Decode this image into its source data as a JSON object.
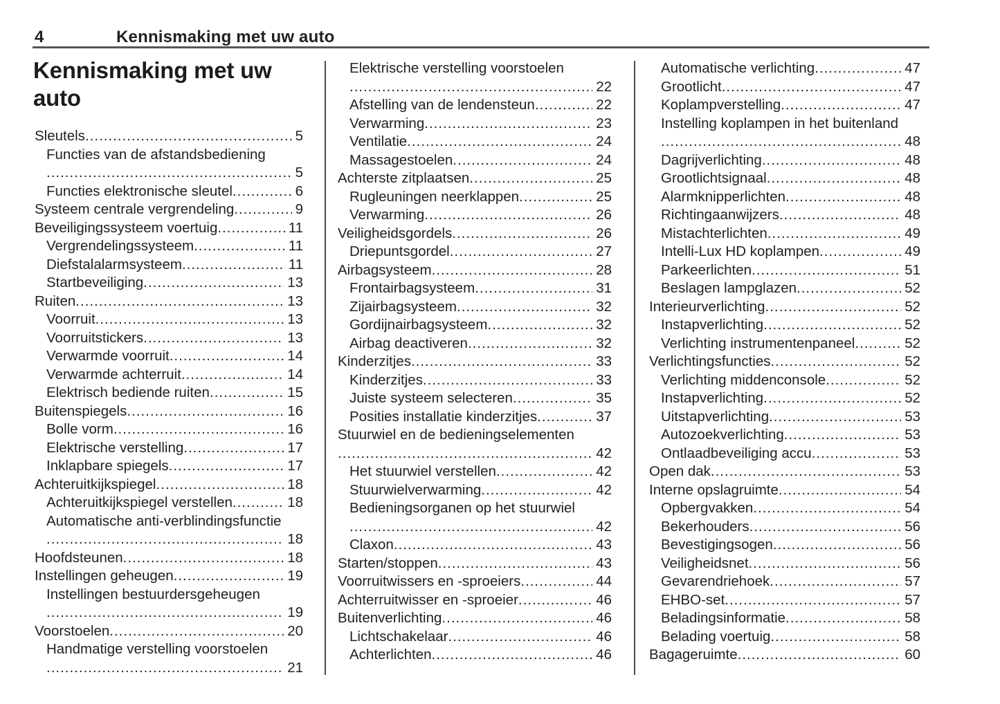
{
  "page_header": {
    "page_number": "4",
    "chapter_title": "Kennismaking met uw auto"
  },
  "section_title": "Kennismaking met uw auto",
  "colors": {
    "background": "#ffffff",
    "text": "#212121",
    "header_rule": "#565656",
    "column_divider": "#4a4a4a"
  },
  "toc": {
    "columns": [
      {
        "rows": [
          {
            "kind": "entry",
            "label": "Sleutels",
            "page": "5",
            "indent": 0
          },
          {
            "kind": "label",
            "label": "Functies van de afstandsbediening",
            "indent": 1
          },
          {
            "kind": "dots",
            "page": "5",
            "indent": 1
          },
          {
            "kind": "entry",
            "label": "Functies elektronische sleutel",
            "page": "6",
            "indent": 1
          },
          {
            "kind": "entry",
            "label": "Systeem centrale vergrendeling",
            "page": "9",
            "indent": 0
          },
          {
            "kind": "entry",
            "label": "Beveiligingssysteem voertuig",
            "page": "11",
            "indent": 0
          },
          {
            "kind": "entry",
            "label": "Vergrendelingssysteem",
            "page": "11",
            "indent": 1
          },
          {
            "kind": "entry",
            "label": "Diefstalalarmsysteem",
            "page": "11",
            "indent": 1
          },
          {
            "kind": "entry",
            "label": "Startbeveiliging",
            "page": "13",
            "indent": 1
          },
          {
            "kind": "entry",
            "label": "Ruiten",
            "page": "13",
            "indent": 0
          },
          {
            "kind": "entry",
            "label": "Voorruit",
            "page": "13",
            "indent": 1
          },
          {
            "kind": "entry",
            "label": "Voorruitstickers",
            "page": "13",
            "indent": 1
          },
          {
            "kind": "entry",
            "label": "Verwarmde voorruit",
            "page": "14",
            "indent": 1
          },
          {
            "kind": "entry",
            "label": "Verwarmde achterruit",
            "page": "14",
            "indent": 1
          },
          {
            "kind": "entry",
            "label": "Elektrisch bediende ruiten",
            "page": "15",
            "indent": 1
          },
          {
            "kind": "entry",
            "label": "Buitenspiegels",
            "page": "16",
            "indent": 0
          },
          {
            "kind": "entry",
            "label": "Bolle vorm",
            "page": "16",
            "indent": 1
          },
          {
            "kind": "entry",
            "label": "Elektrische verstelling",
            "page": "17",
            "indent": 1
          },
          {
            "kind": "entry",
            "label": "Inklapbare spiegels",
            "page": "17",
            "indent": 1
          },
          {
            "kind": "entry",
            "label": "Achteruitkijkspiegel",
            "page": "18",
            "indent": 0
          },
          {
            "kind": "entry",
            "label": "Achteruitkijkspiegel verstellen",
            "page": "18",
            "indent": 1
          },
          {
            "kind": "label",
            "label": "Automatische anti-verblindingsfunctie",
            "indent": 1
          },
          {
            "kind": "dots",
            "page": "18",
            "indent": 1
          },
          {
            "kind": "entry",
            "label": "Hoofdsteunen",
            "page": "18",
            "indent": 0
          },
          {
            "kind": "entry",
            "label": "Instellingen geheugen",
            "page": "19",
            "indent": 0
          },
          {
            "kind": "label",
            "label": "Instellingen bestuurdersgeheugen",
            "indent": 1
          },
          {
            "kind": "dots",
            "page": "19",
            "indent": 1
          },
          {
            "kind": "entry",
            "label": "Voorstoelen",
            "page": "20",
            "indent": 0
          },
          {
            "kind": "label",
            "label": "Handmatige verstelling voorstoelen",
            "indent": 1
          },
          {
            "kind": "dots",
            "page": "21",
            "indent": 1
          }
        ]
      },
      {
        "rows": [
          {
            "kind": "label",
            "label": "Elektrische verstelling voorstoelen",
            "indent": 1
          },
          {
            "kind": "dots",
            "page": "22",
            "indent": 1
          },
          {
            "kind": "entry",
            "label": "Afstelling van de lendensteun",
            "page": "22",
            "indent": 1
          },
          {
            "kind": "entry",
            "label": "Verwarming",
            "page": "23",
            "indent": 1
          },
          {
            "kind": "entry",
            "label": "Ventilatie",
            "page": "24",
            "indent": 1
          },
          {
            "kind": "entry",
            "label": "Massagestoelen",
            "page": "24",
            "indent": 1
          },
          {
            "kind": "entry",
            "label": "Achterste zitplaatsen",
            "page": "25",
            "indent": 0
          },
          {
            "kind": "entry",
            "label": "Rugleuningen neerklappen",
            "page": "25",
            "indent": 1
          },
          {
            "kind": "entry",
            "label": "Verwarming",
            "page": "26",
            "indent": 1
          },
          {
            "kind": "entry",
            "label": "Veiligheidsgordels",
            "page": "26",
            "indent": 0
          },
          {
            "kind": "entry",
            "label": "Driepuntsgordel",
            "page": "27",
            "indent": 1
          },
          {
            "kind": "entry",
            "label": "Airbagsysteem",
            "page": "28",
            "indent": 0
          },
          {
            "kind": "entry",
            "label": "Frontairbagsysteem",
            "page": "31",
            "indent": 1
          },
          {
            "kind": "entry",
            "label": "Zijairbagsysteem",
            "page": "32",
            "indent": 1
          },
          {
            "kind": "entry",
            "label": "Gordijnairbagsysteem",
            "page": "32",
            "indent": 1
          },
          {
            "kind": "entry",
            "label": "Airbag deactiveren",
            "page": "32",
            "indent": 1
          },
          {
            "kind": "entry",
            "label": "Kinderzitjes",
            "page": "33",
            "indent": 0
          },
          {
            "kind": "entry",
            "label": "Kinderzitjes",
            "page": "33",
            "indent": 1
          },
          {
            "kind": "entry",
            "label": "Juiste systeem selecteren",
            "page": "35",
            "indent": 1
          },
          {
            "kind": "entry",
            "label": "Posities installatie kinderzitjes",
            "page": "37",
            "indent": 1
          },
          {
            "kind": "label",
            "label": "Stuurwiel en de bedieningselementen",
            "indent": 0
          },
          {
            "kind": "dots",
            "page": "42",
            "indent": 0
          },
          {
            "kind": "entry",
            "label": "Het stuurwiel verstellen",
            "page": "42",
            "indent": 1
          },
          {
            "kind": "entry",
            "label": "Stuurwielverwarming",
            "page": "42",
            "indent": 1
          },
          {
            "kind": "label",
            "label": "Bedieningsorganen op het stuurwiel",
            "indent": 1
          },
          {
            "kind": "dots",
            "page": "42",
            "indent": 1
          },
          {
            "kind": "entry",
            "label": "Claxon",
            "page": "43",
            "indent": 1
          },
          {
            "kind": "entry",
            "label": "Starten/stoppen",
            "page": "43",
            "indent": 0
          },
          {
            "kind": "entry",
            "label": "Voorruitwissers en -sproeiers",
            "page": "44",
            "indent": 0
          },
          {
            "kind": "entry",
            "label": "Achterruitwisser en -sproeier",
            "page": "46",
            "indent": 0
          },
          {
            "kind": "entry",
            "label": "Buitenverlichting",
            "page": "46",
            "indent": 0
          },
          {
            "kind": "entry",
            "label": "Lichtschakelaar",
            "page": "46",
            "indent": 1
          },
          {
            "kind": "entry",
            "label": "Achterlichten",
            "page": "46",
            "indent": 1
          }
        ]
      },
      {
        "rows": [
          {
            "kind": "entry",
            "label": "Automatische verlichting",
            "page": "47",
            "indent": 1
          },
          {
            "kind": "entry",
            "label": "Grootlicht",
            "page": "47",
            "indent": 1
          },
          {
            "kind": "entry",
            "label": "Koplampverstelling",
            "page": "47",
            "indent": 1
          },
          {
            "kind": "label",
            "label": "Instelling koplampen in het buitenland",
            "indent": 1
          },
          {
            "kind": "dots",
            "page": "48",
            "indent": 1
          },
          {
            "kind": "entry",
            "label": "Dagrijverlichting",
            "page": "48",
            "indent": 1
          },
          {
            "kind": "entry",
            "label": "Grootlichtsignaal",
            "page": "48",
            "indent": 1
          },
          {
            "kind": "entry",
            "label": "Alarmknipperlichten",
            "page": "48",
            "indent": 1
          },
          {
            "kind": "entry",
            "label": "Richtingaanwijzers",
            "page": "48",
            "indent": 1
          },
          {
            "kind": "entry",
            "label": "Mistachterlichten",
            "page": "49",
            "indent": 1
          },
          {
            "kind": "entry",
            "label": "Intelli-Lux HD koplampen",
            "page": "49",
            "indent": 1
          },
          {
            "kind": "entry",
            "label": "Parkeerlichten",
            "page": "51",
            "indent": 1
          },
          {
            "kind": "entry",
            "label": "Beslagen lampglazen",
            "page": "52",
            "indent": 1
          },
          {
            "kind": "entry",
            "label": "Interieurverlichting",
            "page": "52",
            "indent": 0
          },
          {
            "kind": "entry",
            "label": "Instapverlichting",
            "page": "52",
            "indent": 1
          },
          {
            "kind": "entry",
            "label": "Verlichting instrumentenpaneel",
            "page": "52",
            "indent": 1
          },
          {
            "kind": "entry",
            "label": "Verlichtingsfuncties",
            "page": "52",
            "indent": 0
          },
          {
            "kind": "entry",
            "label": "Verlichting middenconsole",
            "page": "52",
            "indent": 1
          },
          {
            "kind": "entry",
            "label": "Instapverlichting",
            "page": "52",
            "indent": 1
          },
          {
            "kind": "entry",
            "label": "Uitstapverlichting",
            "page": "53",
            "indent": 1
          },
          {
            "kind": "entry",
            "label": "Autozoekverlichting",
            "page": "53",
            "indent": 1
          },
          {
            "kind": "entry",
            "label": "Ontlaadbeveiliging accu",
            "page": "53",
            "indent": 1
          },
          {
            "kind": "entry",
            "label": "Open dak",
            "page": "53",
            "indent": 0
          },
          {
            "kind": "entry",
            "label": "Interne opslagruimte",
            "page": "54",
            "indent": 0
          },
          {
            "kind": "entry",
            "label": "Opbergvakken",
            "page": "54",
            "indent": 1
          },
          {
            "kind": "entry",
            "label": "Bekerhouders",
            "page": "56",
            "indent": 1
          },
          {
            "kind": "entry",
            "label": "Bevestigingsogen",
            "page": "56",
            "indent": 1
          },
          {
            "kind": "entry",
            "label": "Veiligheidsnet",
            "page": "56",
            "indent": 1
          },
          {
            "kind": "entry",
            "label": "Gevarendriehoek",
            "page": "57",
            "indent": 1
          },
          {
            "kind": "entry",
            "label": "EHBO-set",
            "page": "57",
            "indent": 1
          },
          {
            "kind": "entry",
            "label": "Beladingsinformatie",
            "page": "58",
            "indent": 1
          },
          {
            "kind": "entry",
            "label": "Belading voertuig",
            "page": "58",
            "indent": 1
          },
          {
            "kind": "entry",
            "label": "Bagageruimte",
            "page": "60",
            "indent": 0
          }
        ]
      }
    ]
  }
}
